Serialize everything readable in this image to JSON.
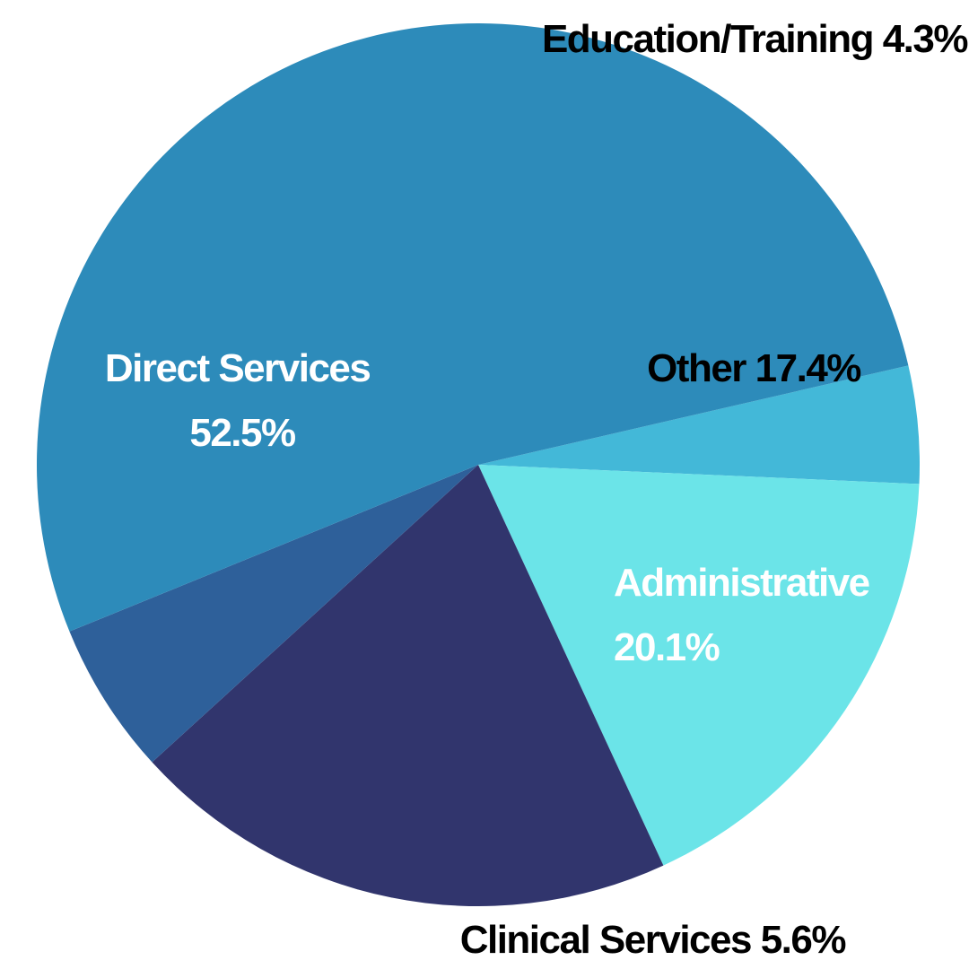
{
  "chart_data": {
    "type": "pie",
    "slices": [
      {
        "name": "Education/Training",
        "value": 4.3,
        "value_label": "4.3%",
        "color": "#43B8D8",
        "label_color": "#000000"
      },
      {
        "name": "Other",
        "value": 17.4,
        "value_label": "17.4%",
        "color": "#6BE4E8",
        "label_color": "#000000"
      },
      {
        "name": "Administrative",
        "value": 20.1,
        "value_label": "20.1%",
        "color": "#31356D",
        "label_color": "#ffffff"
      },
      {
        "name": "Clinical Services",
        "value": 5.6,
        "value_label": "5.6%",
        "color": "#2E609A",
        "label_color": "#000000"
      },
      {
        "name": "Direct Services",
        "value": 52.5,
        "value_label": "52.5%",
        "color": "#2D8BBA",
        "label_color": "#ffffff"
      }
    ]
  }
}
